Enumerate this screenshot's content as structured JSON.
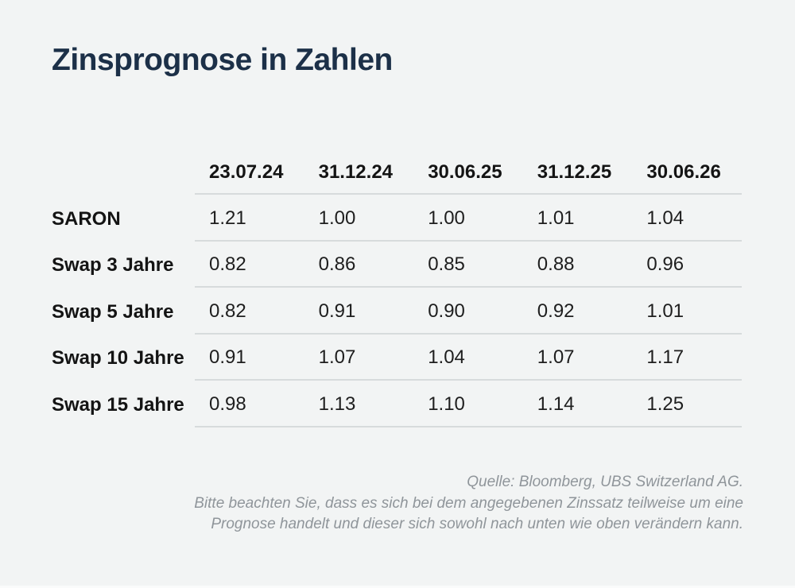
{
  "chart_data": {
    "type": "table",
    "title": "Zinsprognose in Zahlen",
    "columns": [
      "23.07.24",
      "31.12.24",
      "30.06.25",
      "31.12.25",
      "30.06.26"
    ],
    "rows": [
      {
        "label": "SARON",
        "values": [
          "1.21",
          "1.00",
          "1.00",
          "1.01",
          "1.04"
        ]
      },
      {
        "label": "Swap 3 Jahre",
        "values": [
          "0.82",
          "0.86",
          "0.85",
          "0.88",
          "0.96"
        ]
      },
      {
        "label": "Swap 5 Jahre",
        "values": [
          "0.82",
          "0.91",
          "0.90",
          "0.92",
          "1.01"
        ]
      },
      {
        "label": "Swap 10 Jahre",
        "values": [
          "0.91",
          "1.07",
          "1.04",
          "1.07",
          "1.17"
        ]
      },
      {
        "label": "Swap 15 Jahre",
        "values": [
          "0.98",
          "1.13",
          "1.10",
          "1.14",
          "1.25"
        ]
      }
    ],
    "source": "Quelle: Bloomberg, UBS Switzerland AG.",
    "note_lines": [
      "Bitte beachten Sie, dass es sich bei dem angegebenen Zinssatz teilweise um eine",
      "Prognose handelt und dieser sich sowohl nach unten wie oben verändern kann."
    ]
  },
  "colors": {
    "background": "#f2f4f4",
    "title": "#1c3048",
    "header_text": "#141414",
    "value_text": "#1e1e1e",
    "divider": "#d7dbdc",
    "footer_text": "#8f959a"
  }
}
